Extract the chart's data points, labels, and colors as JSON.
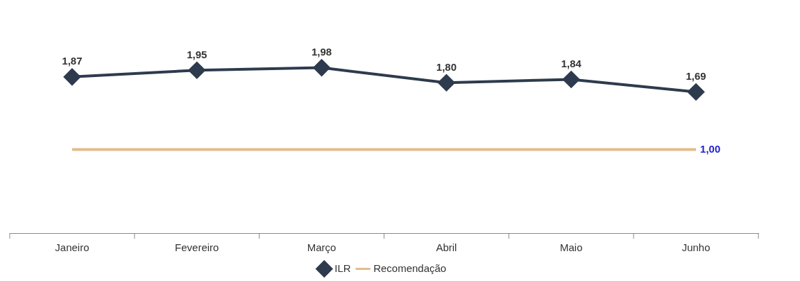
{
  "chart_data": {
    "type": "line",
    "categories": [
      "Janeiro",
      "Fevereiro",
      "Março",
      "Abril",
      "Maio",
      "Junho"
    ],
    "series": [
      {
        "name": "ILR",
        "color": "#2e3b4e",
        "values": [
          1.87,
          1.95,
          1.98,
          1.8,
          1.84,
          1.69
        ],
        "marker": "diamond",
        "value_labels": [
          "1,87",
          "1,95",
          "1,98",
          "1,80",
          "1,84",
          "1,69"
        ]
      },
      {
        "name": "Recomendação",
        "color": "#e2bb8c",
        "values": [
          1.0,
          1.0,
          1.0,
          1.0,
          1.0,
          1.0
        ],
        "marker": "none",
        "value_labels": [
          null,
          null,
          null,
          null,
          null,
          "1,00"
        ]
      }
    ],
    "tick_labels": "x",
    "grid": false,
    "legend": "bottom"
  }
}
